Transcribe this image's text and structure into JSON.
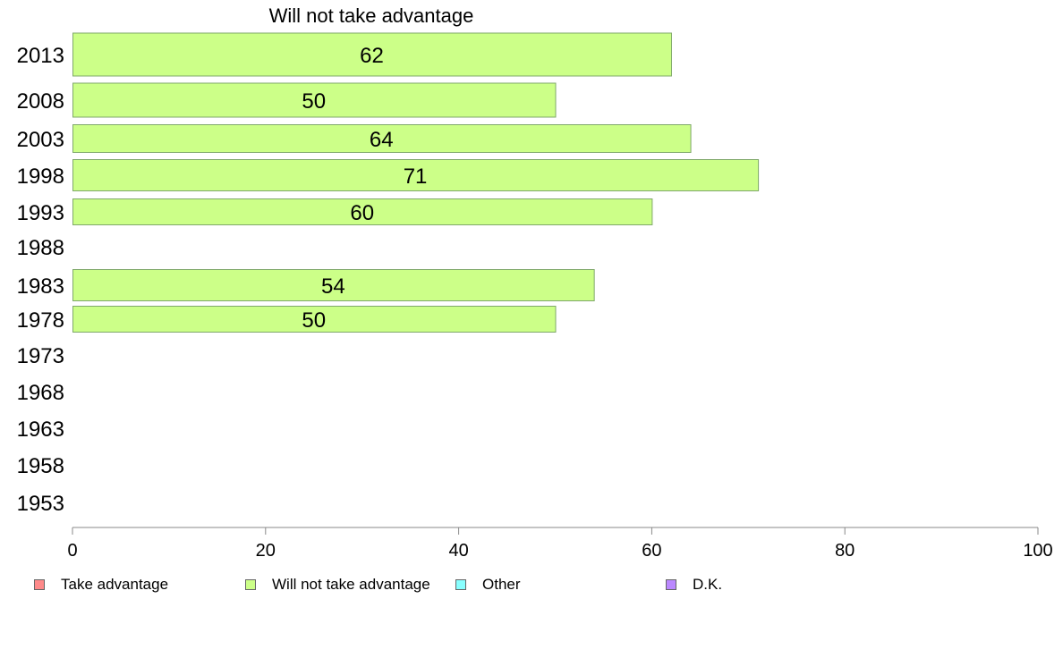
{
  "chart_data": {
    "type": "bar",
    "orientation": "horizontal",
    "title": "Will not take advantage",
    "categories": [
      "2013",
      "2008",
      "2003",
      "1998",
      "1993",
      "1988",
      "1983",
      "1978",
      "1973",
      "1968",
      "1963",
      "1958",
      "1953"
    ],
    "series": [
      {
        "name": "Will not take advantage",
        "color": "#ccff88",
        "values": [
          62,
          50,
          64,
          71,
          60,
          null,
          54,
          50,
          null,
          null,
          null,
          null,
          null
        ],
        "labels": [
          "62",
          "50",
          "64",
          "71",
          "60",
          "",
          "54",
          "50",
          "",
          "",
          "",
          "",
          ""
        ]
      }
    ],
    "xlim": [
      0,
      100
    ],
    "xticks": [
      "0",
      "20",
      "40",
      "60",
      "80",
      "100"
    ],
    "grid": false,
    "legend_position": "bottom",
    "legend": [
      {
        "label": "Take advantage",
        "color": "#ff8a8a"
      },
      {
        "label": "Will not take advantage",
        "color": "#ccff88"
      },
      {
        "label": "Other",
        "color": "#88ffff"
      },
      {
        "label": "D.K.",
        "color": "#bb88ff"
      }
    ]
  }
}
